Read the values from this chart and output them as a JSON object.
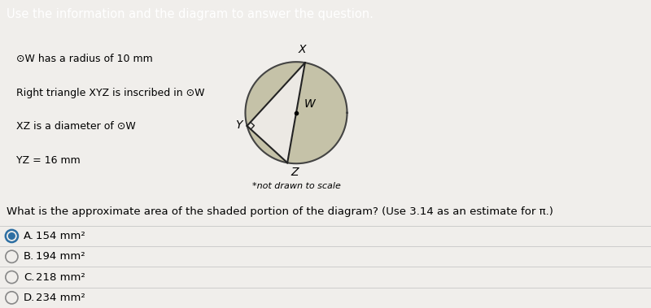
{
  "header_text": "Use the information and the diagram to answer the question.",
  "header_bg": "#3b8bbf",
  "header_text_color": "#ffffff",
  "info_lines": [
    "⊙W has a radius of 10 mm",
    "Right triangle XYZ is inscribed in ⊙W",
    "XZ is a diameter of ⊙W",
    "YZ = 16 mm"
  ],
  "question_text": "What is the approximate area of the shaded portion of the diagram? (Use 3.14 as an estimate for π.)",
  "not_to_scale": "*not drawn to scale",
  "options": [
    {
      "label": "A.",
      "text": "154 mm²",
      "selected": true
    },
    {
      "label": "B.",
      "text": "194 mm²",
      "selected": false
    },
    {
      "label": "C.",
      "text": "218 mm²",
      "selected": false
    },
    {
      "label": "D.",
      "text": "234 mm²",
      "selected": false
    }
  ],
  "bg_color": "#f0eeeb",
  "content_bg": "#ece9e4",
  "shaded_color": "#c5c2a8",
  "circle_edge": "#444444",
  "triangle_edge": "#222222",
  "option_bg_selected": "#e6e4e0",
  "option_bg_normal": "#ffffff",
  "option_border": "#cccccc",
  "selected_ring_color": "#2e6fa3",
  "selected_fill_color": "#2e6fa3",
  "question_bg": "#f5f3f0"
}
